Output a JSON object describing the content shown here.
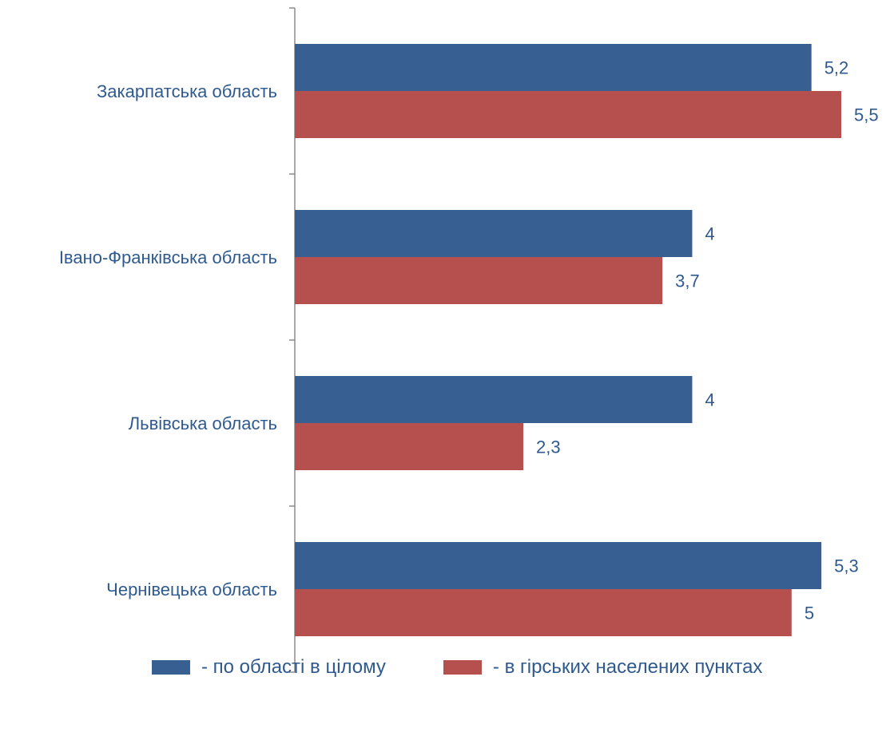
{
  "chart_data": {
    "type": "bar",
    "orientation": "horizontal",
    "categories": [
      "Закарпатська область",
      "Івано-Франківська область",
      "Львівська область",
      "Чернівецька область"
    ],
    "series": [
      {
        "name": "- по області в цілому",
        "color": "#375f91",
        "values": [
          5.2,
          4,
          4,
          5.3
        ],
        "labels": [
          "5,2",
          "4",
          "4",
          "5,3"
        ]
      },
      {
        "name": "- в гірських населених пунктах",
        "color": "#b5504e",
        "values": [
          5.5,
          3.7,
          2.3,
          5
        ],
        "labels": [
          "5,5",
          "3,7",
          "2,3",
          "5"
        ]
      }
    ],
    "xlim": [
      0,
      5.5
    ],
    "grid": false,
    "legend_position": "bottom",
    "title": "",
    "xlabel": "",
    "ylabel": ""
  },
  "legend": {
    "items": [
      {
        "label": "- по області в цілому",
        "color": "#375f91"
      },
      {
        "label": "- в гірських населених пунктах",
        "color": "#b5504e"
      }
    ]
  }
}
